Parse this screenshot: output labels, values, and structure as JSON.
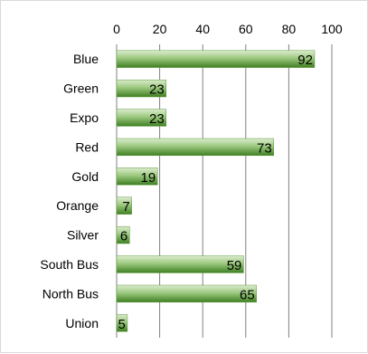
{
  "chart_data": {
    "type": "bar",
    "orientation": "horizontal",
    "categories": [
      "Blue",
      "Green",
      "Expo",
      "Red",
      "Gold",
      "Orange",
      "Silver",
      "South Bus",
      "North Bus",
      "Union"
    ],
    "values": [
      92,
      23,
      23,
      73,
      19,
      7,
      6,
      59,
      65,
      5
    ],
    "x_ticks": [
      "0",
      "20",
      "40",
      "60",
      "80",
      "100"
    ],
    "xlim": [
      0,
      100
    ],
    "x_axis_position": "top",
    "grid": true,
    "data_labels": true,
    "legend": false,
    "colors": {
      "bar_light": "#c6e0b4",
      "bar_mid": "#7ab55a",
      "bar_dark": "#3a7a1f",
      "grid": "#808080"
    }
  }
}
